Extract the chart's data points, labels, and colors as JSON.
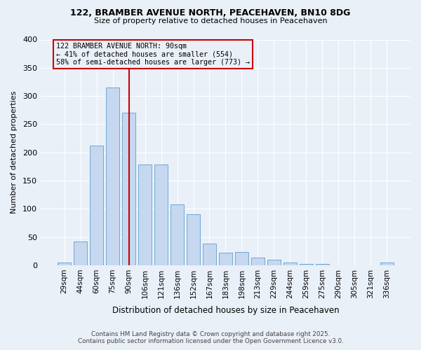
{
  "title_line1": "122, BRAMBER AVENUE NORTH, PEACEHAVEN, BN10 8DG",
  "title_line2": "Size of property relative to detached houses in Peacehaven",
  "xlabel": "Distribution of detached houses by size in Peacehaven",
  "ylabel": "Number of detached properties",
  "categories": [
    "29sqm",
    "44sqm",
    "60sqm",
    "75sqm",
    "90sqm",
    "106sqm",
    "121sqm",
    "136sqm",
    "152sqm",
    "167sqm",
    "183sqm",
    "198sqm",
    "213sqm",
    "229sqm",
    "244sqm",
    "259sqm",
    "275sqm",
    "290sqm",
    "305sqm",
    "321sqm",
    "336sqm"
  ],
  "values": [
    5,
    42,
    212,
    315,
    270,
    178,
    178,
    108,
    90,
    38,
    22,
    24,
    13,
    10,
    5,
    2,
    2,
    0,
    0,
    0,
    5
  ],
  "bar_color": "#c5d8ef",
  "bar_edge_color": "#6fa8d4",
  "highlight_index": 4,
  "highlight_color": "#cc0000",
  "annotation_text": "122 BRAMBER AVENUE NORTH: 90sqm\n← 41% of detached houses are smaller (554)\n58% of semi-detached houses are larger (773) →",
  "annotation_box_color": "#cc0000",
  "background_color": "#eaf0f8",
  "ylim": [
    0,
    400
  ],
  "yticks": [
    0,
    50,
    100,
    150,
    200,
    250,
    300,
    350,
    400
  ],
  "footer_line1": "Contains HM Land Registry data © Crown copyright and database right 2025.",
  "footer_line2": "Contains public sector information licensed under the Open Government Licence v3.0."
}
